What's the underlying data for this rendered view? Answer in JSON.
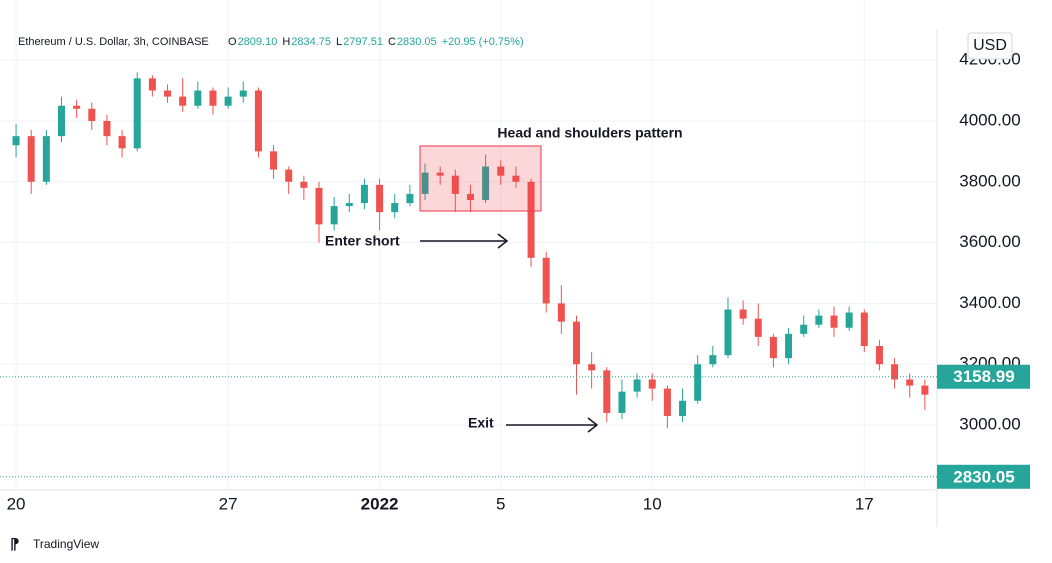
{
  "chart_data": {
    "type": "candlestick",
    "symbol": "Ethereum / U.S. Dollar, 3h, COINBASE",
    "ohlc_header": [
      {
        "label": "O",
        "value": "2809.10"
      },
      {
        "label": "H",
        "value": "2834.75"
      },
      {
        "label": "L",
        "value": "2797.51"
      },
      {
        "label": "C",
        "value": "2830.05"
      }
    ],
    "change": "+20.95 (+0.75%)",
    "currency": "USD",
    "up_color": "#26a69a",
    "down_color": "#ef5350",
    "x": [
      0,
      0.5,
      1,
      1.5,
      2,
      2.5,
      3,
      3.5,
      4,
      4.5,
      5,
      5.5,
      6,
      6.5,
      7,
      7.5,
      8,
      8.5,
      9,
      9.5,
      10,
      10.5,
      11,
      11.5,
      12,
      12.5,
      13,
      13.5,
      14,
      14.5,
      15,
      15.5,
      16,
      16.5,
      17,
      17.5,
      18,
      18.5,
      19,
      19.5,
      20,
      20.5,
      21,
      21.5,
      22,
      22.5,
      23,
      23.5,
      24,
      24.5,
      25,
      25.5,
      26,
      26.5,
      27,
      27.5,
      28,
      28.5,
      29,
      29.5,
      30
    ],
    "open": [
      3920,
      3950,
      3800,
      3950,
      4050,
      4040,
      4000,
      3950,
      3910,
      4140,
      4100,
      4080,
      4050,
      4100,
      4050,
      4080,
      4100,
      3900,
      3840,
      3800,
      3780,
      3660,
      3720,
      3730,
      3790,
      3700,
      3730,
      3760,
      3830,
      3820,
      3760,
      3740,
      3850,
      3820,
      3800,
      3550,
      3400,
      3340,
      3200,
      3180,
      3040,
      3110,
      3150,
      3120,
      3030,
      3080,
      3200,
      3230,
      3380,
      3350,
      3290,
      3220,
      3300,
      3330,
      3360,
      3320,
      3370,
      3260,
      3200,
      3150,
      3130
    ],
    "high": [
      3990,
      3970,
      3970,
      4080,
      4070,
      4060,
      4020,
      3970,
      4160,
      4150,
      4120,
      4140,
      4130,
      4110,
      4110,
      4130,
      4110,
      3920,
      3850,
      3820,
      3800,
      3750,
      3760,
      3810,
      3810,
      3760,
      3790,
      3860,
      3850,
      3840,
      3790,
      3890,
      3870,
      3850,
      3810,
      3570,
      3460,
      3360,
      3240,
      3190,
      3150,
      3170,
      3170,
      3130,
      3120,
      3230,
      3260,
      3420,
      3410,
      3400,
      3300,
      3320,
      3360,
      3380,
      3390,
      3390,
      3380,
      3280,
      3220,
      3170,
      3150
    ],
    "low": [
      3880,
      3760,
      3790,
      3930,
      4010,
      3970,
      3920,
      3880,
      3900,
      4080,
      4060,
      4030,
      4040,
      4020,
      4040,
      4060,
      3880,
      3810,
      3760,
      3740,
      3600,
      3640,
      3700,
      3710,
      3640,
      3680,
      3720,
      3740,
      3790,
      3700,
      3700,
      3730,
      3790,
      3780,
      3520,
      3370,
      3300,
      3100,
      3120,
      3010,
      3020,
      3090,
      3080,
      2990,
      3010,
      3070,
      3190,
      3220,
      3330,
      3260,
      3190,
      3200,
      3290,
      3320,
      3290,
      3310,
      3240,
      3180,
      3120,
      3090,
      3050
    ],
    "close": [
      3950,
      3800,
      3950,
      4050,
      4040,
      4000,
      3950,
      3910,
      4140,
      4100,
      4080,
      4050,
      4100,
      4050,
      4080,
      4100,
      3900,
      3840,
      3800,
      3780,
      3660,
      3720,
      3730,
      3790,
      3700,
      3730,
      3760,
      3830,
      3820,
      3760,
      3740,
      3850,
      3820,
      3800,
      3550,
      3400,
      3340,
      3200,
      3180,
      3040,
      3110,
      3150,
      3120,
      3030,
      3080,
      3200,
      3230,
      3380,
      3350,
      3290,
      3220,
      3300,
      3330,
      3360,
      3320,
      3370,
      3260,
      3200,
      3150,
      3130,
      3100
    ],
    "xlim": [
      -0.2,
      30.4
    ],
    "xticks": [
      {
        "value": 0,
        "label": "20"
      },
      {
        "value": 7,
        "label": "27"
      },
      {
        "value": 12,
        "label": "2022"
      },
      {
        "value": 16,
        "label": "5"
      },
      {
        "value": 21,
        "label": "10"
      },
      {
        "value": 28,
        "label": "17"
      }
    ],
    "ylim": [
      2803,
      4299
    ],
    "yticks": [
      {
        "value": 3000,
        "label": "3000.00"
      },
      {
        "value": 3200,
        "label": "3200.00"
      },
      {
        "value": 3400,
        "label": "3400.00"
      },
      {
        "value": 3600,
        "label": "3600.00"
      },
      {
        "value": 3800,
        "label": "3800.00"
      },
      {
        "value": 4000,
        "label": "4000.00"
      },
      {
        "value": 4200,
        "label": "4200.00"
      }
    ],
    "grid": true,
    "price_labels": [
      {
        "value": 3158.99,
        "color": "#26a69a"
      },
      {
        "value": 2830.05,
        "color": "#26a69a"
      }
    ],
    "annotations": {
      "pattern": "Head and shoulders pattern",
      "enter": "Enter short",
      "exit": "Exit"
    },
    "brand": "TradingView"
  }
}
